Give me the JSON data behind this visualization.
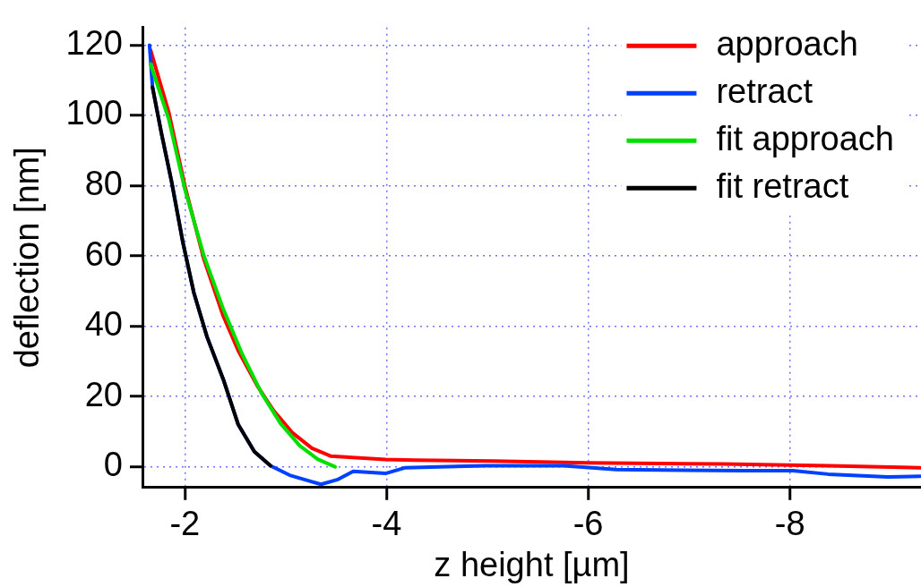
{
  "chart_data": {
    "type": "line",
    "xlabel": "z height [µm]",
    "ylabel": "deflection [nm]",
    "xlim": [
      -1.58,
      -9.3
    ],
    "ylim": [
      -5.9,
      125
    ],
    "xticks": [
      -2,
      -4,
      -6,
      -8
    ],
    "yticks": [
      0,
      20,
      40,
      60,
      80,
      100,
      120
    ],
    "grid": true,
    "legend": "top right",
    "marker": "none",
    "line_style": "solid",
    "series": [
      {
        "name": "approach",
        "color": "#ff0000",
        "x": [
          -1.66,
          -1.84,
          -2.0,
          -2.19,
          -2.38,
          -2.53,
          -2.72,
          -2.88,
          -3.07,
          -3.26,
          -3.45,
          -3.99,
          -4.28,
          -5.06,
          -6.0,
          -7.33,
          -8.38,
          -9.29
        ],
        "values": [
          118.6,
          101,
          80,
          59,
          43,
          33,
          23,
          16,
          9.6,
          5.3,
          3,
          2.1,
          1.9,
          1.6,
          1.1,
          0.8,
          0.3,
          -0.3
        ]
      },
      {
        "name": "retract",
        "color": "#0040ff",
        "x": [
          -1.65,
          -1.68,
          -1.77,
          -1.87,
          -1.98,
          -2.09,
          -2.22,
          -2.38,
          -2.53,
          -2.69,
          -2.85,
          -3.04,
          -3.23,
          -3.35,
          -3.51,
          -3.67,
          -3.99,
          -4.18,
          -4.98,
          -5.76,
          -6.28,
          -7.54,
          -8.03,
          -8.38,
          -8.97,
          -9.29
        ],
        "values": [
          120,
          108,
          94.7,
          81,
          64,
          49.5,
          37,
          25,
          12,
          4.3,
          0.3,
          -2.4,
          -4,
          -5,
          -3.7,
          -1.3,
          -1.9,
          -0.3,
          0.3,
          0.3,
          -0.8,
          -1.1,
          -1.1,
          -2.1,
          -2.9,
          -2.7
        ]
      },
      {
        "name": "fit approach",
        "color": "#00e000",
        "x": [
          -1.66,
          -1.84,
          -2.0,
          -2.19,
          -2.38,
          -2.57,
          -2.76,
          -2.95,
          -3.14,
          -3.32,
          -3.49
        ],
        "values": [
          114.6,
          99,
          79,
          60,
          45,
          32,
          21,
          12.3,
          6,
          2.1,
          0
        ]
      },
      {
        "name": "fit retract",
        "color": "#000000",
        "x": [
          -1.68,
          -1.77,
          -1.87,
          -1.98,
          -2.09,
          -2.22,
          -2.38,
          -2.53,
          -2.69,
          -2.85
        ],
        "values": [
          108,
          94.7,
          81,
          64,
          49.5,
          37,
          25,
          12,
          4.3,
          0.3
        ]
      }
    ]
  }
}
